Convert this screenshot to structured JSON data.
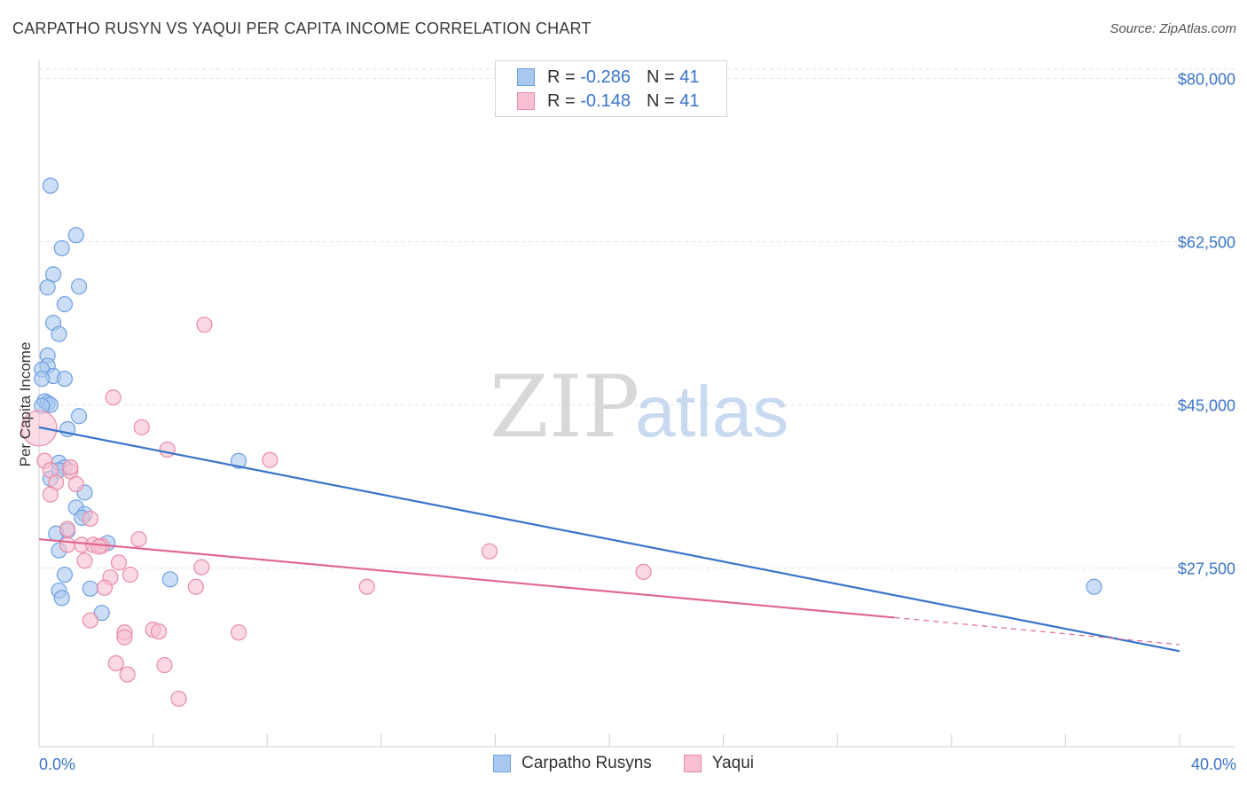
{
  "header": {
    "title": "CARPATHO RUSYN VS YAQUI PER CAPITA INCOME CORRELATION CHART",
    "source": "Source: ZipAtlas.com"
  },
  "legend_top": {
    "rows": [
      {
        "r_label": "R =",
        "r_value": "-0.286",
        "n_label": "N =",
        "n_value": "41",
        "color": "#a9c8ef",
        "border": "#6f9fe0"
      },
      {
        "r_label": "R =",
        "r_value": "-0.148",
        "n_label": "N =",
        "n_value": "41",
        "color": "#f7c0d0",
        "border": "#e98aa8"
      }
    ]
  },
  "legend_bottom": {
    "items": [
      {
        "label": "Carpatho Rusyns",
        "color": "#a9c8ef",
        "border": "#6f9fe0"
      },
      {
        "label": "Yaqui",
        "color": "#f7c0d0",
        "border": "#e98aa8"
      }
    ]
  },
  "watermark": {
    "zip": "ZIP",
    "atlas": "atlas"
  },
  "colors": {
    "blue": "#3a74c8",
    "pink": "#e06690",
    "grid": "#e2e2e2",
    "axis_text": "#3a74c8"
  },
  "chart_data": {
    "type": "scatter",
    "title": "CARPATHO RUSYN VS YAQUI PER CAPITA INCOME CORRELATION CHART",
    "xlabel": "",
    "ylabel": "Per Capita Income",
    "xlim": [
      0,
      40
    ],
    "ylim": [
      9500,
      81000
    ],
    "x_tick_labels": [
      "0.0%",
      "40.0%"
    ],
    "y_ticks": [
      {
        "value": 80000,
        "label": "$80,000"
      },
      {
        "value": 62500,
        "label": "$62,500"
      },
      {
        "value": 45000,
        "label": "$45,000"
      },
      {
        "value": 27500,
        "label": "$27,500"
      }
    ],
    "series": [
      {
        "name": "Carpatho Rusyns",
        "color": "#6f9fe0",
        "fill": "#a9c8ef",
        "r": -0.286,
        "n": 41,
        "points": [
          [
            0.4,
            68500
          ],
          [
            1.3,
            63200
          ],
          [
            0.8,
            61800
          ],
          [
            0.5,
            59000
          ],
          [
            0.3,
            57600
          ],
          [
            1.4,
            57700
          ],
          [
            0.9,
            55800
          ],
          [
            0.5,
            53800
          ],
          [
            0.7,
            52600
          ],
          [
            0.3,
            50300
          ],
          [
            0.3,
            49200
          ],
          [
            0.1,
            48800
          ],
          [
            0.5,
            48100
          ],
          [
            0.1,
            47800
          ],
          [
            0.9,
            47800
          ],
          [
            0.2,
            45400
          ],
          [
            0.3,
            45200
          ],
          [
            0.4,
            45000
          ],
          [
            0.1,
            44900
          ],
          [
            1.4,
            43800
          ],
          [
            1.0,
            42400
          ],
          [
            0.7,
            38800
          ],
          [
            0.4,
            37100
          ],
          [
            1.6,
            35600
          ],
          [
            1.3,
            34000
          ],
          [
            1.6,
            33300
          ],
          [
            1.5,
            32900
          ],
          [
            1.0,
            31500
          ],
          [
            0.6,
            31200
          ],
          [
            2.4,
            30200
          ],
          [
            0.7,
            29400
          ],
          [
            0.9,
            26800
          ],
          [
            4.6,
            26300
          ],
          [
            0.7,
            25100
          ],
          [
            1.8,
            25300
          ],
          [
            0.8,
            24300
          ],
          [
            2.2,
            22700
          ],
          [
            7.0,
            39000
          ],
          [
            37.0,
            25500
          ],
          [
            0.9,
            38300
          ],
          [
            0.7,
            38000
          ]
        ],
        "trend": {
          "x0": 0,
          "y0": 42600,
          "x1": 40,
          "y1": 18600
        }
      },
      {
        "name": "Yaqui",
        "color": "#e98aa8",
        "fill": "#f7c0d0",
        "r": -0.148,
        "n": 41,
        "points": [
          [
            0.0,
            42500
          ],
          [
            5.8,
            53600
          ],
          [
            2.6,
            45800
          ],
          [
            3.6,
            42600
          ],
          [
            4.5,
            40200
          ],
          [
            8.1,
            39100
          ],
          [
            0.2,
            39000
          ],
          [
            0.4,
            38000
          ],
          [
            0.6,
            36700
          ],
          [
            1.1,
            37900
          ],
          [
            1.3,
            36500
          ],
          [
            0.4,
            35400
          ],
          [
            1.0,
            31700
          ],
          [
            1.8,
            32800
          ],
          [
            3.5,
            30600
          ],
          [
            1.5,
            30000
          ],
          [
            1.9,
            30000
          ],
          [
            2.2,
            29900
          ],
          [
            1.0,
            30000
          ],
          [
            15.8,
            29300
          ],
          [
            1.6,
            28300
          ],
          [
            2.8,
            28100
          ],
          [
            5.7,
            27600
          ],
          [
            3.2,
            26800
          ],
          [
            2.5,
            26500
          ],
          [
            21.2,
            27100
          ],
          [
            2.3,
            25400
          ],
          [
            5.5,
            25500
          ],
          [
            11.5,
            25500
          ],
          [
            1.8,
            21900
          ],
          [
            3.0,
            20600
          ],
          [
            3.0,
            20100
          ],
          [
            4.0,
            20900
          ],
          [
            4.2,
            20700
          ],
          [
            7.0,
            20600
          ],
          [
            2.7,
            17300
          ],
          [
            3.1,
            16100
          ],
          [
            4.4,
            17100
          ],
          [
            4.9,
            13500
          ],
          [
            1.1,
            38300
          ],
          [
            2.1,
            29800
          ]
        ],
        "trend": {
          "x0": 0,
          "y0": 30600,
          "x1": 30,
          "y1": 22200,
          "dash_x1": 40,
          "dash_y1": 19300
        }
      }
    ]
  }
}
